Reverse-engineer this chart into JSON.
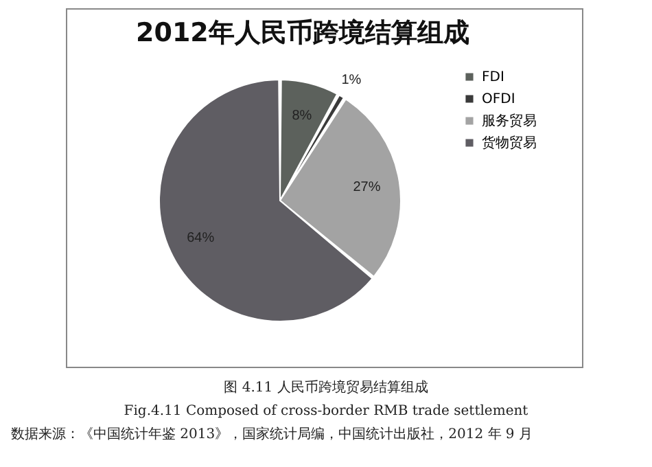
{
  "chart_data": {
    "type": "pie",
    "title": "2012年人民币跨境结算组成",
    "categories": [
      "FDI",
      "OFDI",
      "服务贸易",
      "货物贸易"
    ],
    "values": [
      8,
      1,
      27,
      64
    ],
    "colors": [
      "#5c615c",
      "#3a3a3a",
      "#a3a3a3",
      "#5f5d63"
    ],
    "value_labels": [
      "8%",
      "1%",
      "27%",
      "64%"
    ],
    "legend": "right",
    "annotations": [
      "图 4.11 人民币跨境贸易结算组成",
      "Fig.4.11 Composed of cross-border RMB trade settlement",
      "数据来源：《中国统计年鉴 2013》，国家统计局编，中国统计出版社，2012 年 9 月"
    ]
  }
}
